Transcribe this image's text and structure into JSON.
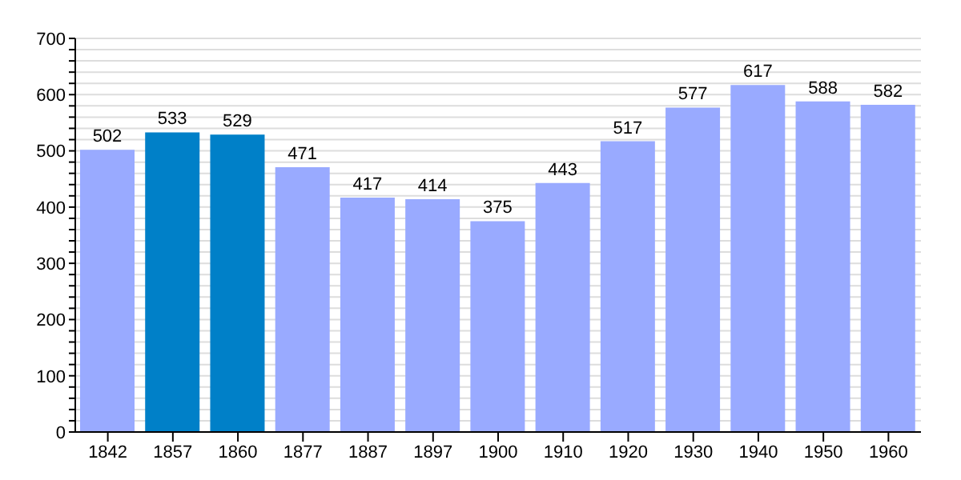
{
  "chart_data": {
    "type": "bar",
    "categories": [
      "1842",
      "1857",
      "1860",
      "1877",
      "1887",
      "1897",
      "1900",
      "1910",
      "1920",
      "1930",
      "1940",
      "1950",
      "1960"
    ],
    "values": [
      502,
      533,
      529,
      471,
      417,
      414,
      375,
      443,
      517,
      577,
      617,
      588,
      582
    ],
    "colors": [
      "#99aaff",
      "#0080c8",
      "#0080c8",
      "#99aaff",
      "#99aaff",
      "#99aaff",
      "#99aaff",
      "#99aaff",
      "#99aaff",
      "#99aaff",
      "#99aaff",
      "#99aaff",
      "#99aaff"
    ],
    "ylim": [
      0,
      700
    ],
    "yticks": [
      0,
      {
        "value": 20,
        "label": null
      },
      {
        "value": 40,
        "label": null
      },
      {
        "value": 60,
        "label": null
      },
      {
        "value": 80,
        "label": null
      },
      100,
      {
        "value": 120,
        "label": null
      },
      {
        "value": 140,
        "label": null
      },
      {
        "value": 160,
        "label": null
      },
      {
        "value": 180,
        "label": null
      },
      200,
      {
        "value": 220,
        "label": null
      },
      {
        "value": 240,
        "label": null
      },
      {
        "value": 260,
        "label": null
      },
      {
        "value": 280,
        "label": null
      },
      300,
      {
        "value": 320,
        "label": null
      },
      {
        "value": 340,
        "label": null
      },
      {
        "value": 360,
        "label": null
      },
      {
        "value": 380,
        "label": null
      },
      400,
      {
        "value": 420,
        "label": null
      },
      {
        "value": 440,
        "label": null
      },
      {
        "value": 460,
        "label": null
      },
      {
        "value": 480,
        "label": null
      },
      500,
      {
        "value": 520,
        "label": null
      },
      {
        "value": 540,
        "label": null
      },
      {
        "value": 560,
        "label": null
      },
      {
        "value": 580,
        "label": null
      },
      600,
      {
        "value": 620,
        "label": null
      },
      {
        "value": 640,
        "label": null
      },
      {
        "value": 660,
        "label": null
      },
      {
        "value": 680,
        "label": null
      },
      700
    ],
    "grid": "y",
    "data_labels": true
  }
}
